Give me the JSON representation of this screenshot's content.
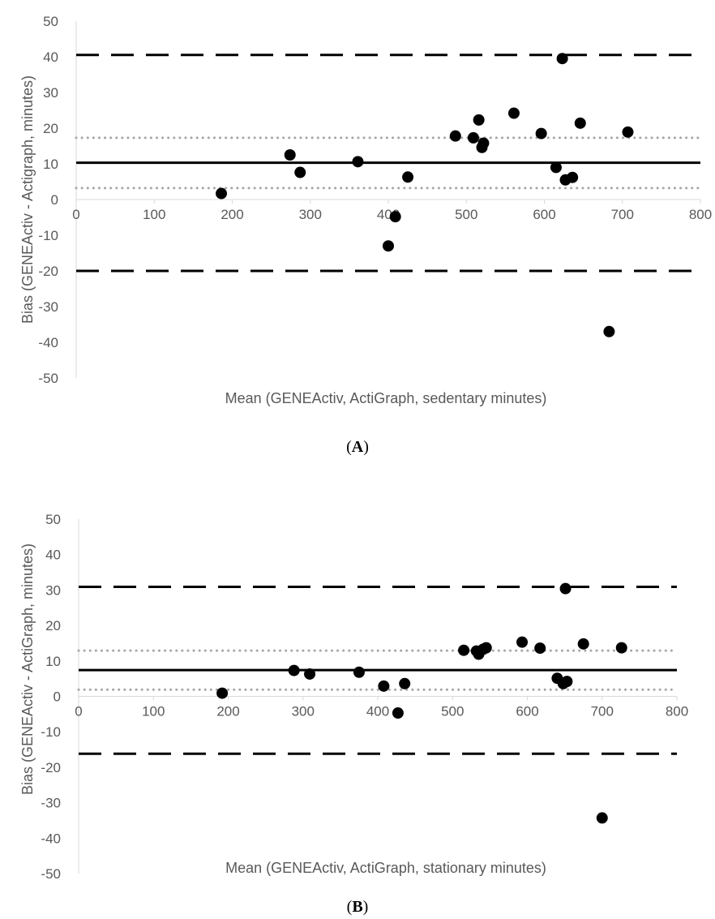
{
  "chart_data": [
    {
      "type": "scatter",
      "panel_label": "A",
      "xlabel": "Mean (GENEActiv, ActiGraph, sedentary minutes)",
      "ylabel": "Bias (GENEActiv - Actigraph, minutes)",
      "xlim": [
        0,
        800
      ],
      "ylim": [
        -50,
        50
      ],
      "x_ticks": [
        0,
        100,
        200,
        300,
        400,
        500,
        600,
        700,
        800
      ],
      "y_ticks": [
        50,
        40,
        30,
        20,
        10,
        0,
        -10,
        -20,
        -30,
        -40,
        -50
      ],
      "grid": false,
      "reference_lines": {
        "mean_bias": 10.3,
        "ci_upper": 17.3,
        "ci_lower": 3.2,
        "loa_upper": 40.5,
        "loa_lower": -20
      },
      "points": [
        {
          "x": 186,
          "y": 1.7
        },
        {
          "x": 274,
          "y": 12.5
        },
        {
          "x": 287,
          "y": 7.6
        },
        {
          "x": 361,
          "y": 10.6
        },
        {
          "x": 400,
          "y": -13
        },
        {
          "x": 409,
          "y": -4.8
        },
        {
          "x": 425,
          "y": 6.3
        },
        {
          "x": 486,
          "y": 17.8
        },
        {
          "x": 509,
          "y": 17.3
        },
        {
          "x": 516,
          "y": 22.3
        },
        {
          "x": 520,
          "y": 14.6
        },
        {
          "x": 522,
          "y": 15.8
        },
        {
          "x": 561,
          "y": 24.2
        },
        {
          "x": 596,
          "y": 18.5
        },
        {
          "x": 615,
          "y": 9.0
        },
        {
          "x": 623,
          "y": 39.5
        },
        {
          "x": 627,
          "y": 5.5
        },
        {
          "x": 636,
          "y": 6.2
        },
        {
          "x": 646,
          "y": 21.4
        },
        {
          "x": 683,
          "y": -37
        },
        {
          "x": 707,
          "y": 18.9
        }
      ]
    },
    {
      "type": "scatter",
      "panel_label": "B",
      "xlabel": "Mean (GENEActiv, ActiGraph, stationary minutes)",
      "ylabel": "Bias (GENEActiv - ActiGraph, minutes)",
      "xlim": [
        0,
        800
      ],
      "ylim": [
        -50,
        50
      ],
      "x_ticks": [
        0,
        100,
        200,
        300,
        400,
        500,
        600,
        700,
        800
      ],
      "y_ticks": [
        50,
        40,
        30,
        20,
        10,
        0,
        -10,
        -20,
        -30,
        -40,
        -50
      ],
      "grid": false,
      "reference_lines": {
        "mean_bias": 7.4,
        "ci_upper": 12.9,
        "ci_lower": 1.9,
        "loa_upper": 30.9,
        "loa_lower": -16.2
      },
      "points": [
        {
          "x": 192,
          "y": 0.9
        },
        {
          "x": 288,
          "y": 7.3
        },
        {
          "x": 309,
          "y": 6.3
        },
        {
          "x": 375,
          "y": 6.8
        },
        {
          "x": 408,
          "y": 2.9
        },
        {
          "x": 427,
          "y": -4.7
        },
        {
          "x": 436,
          "y": 3.6
        },
        {
          "x": 515,
          "y": 13.0
        },
        {
          "x": 532,
          "y": 12.8
        },
        {
          "x": 535,
          "y": 11.9
        },
        {
          "x": 541,
          "y": 13.3
        },
        {
          "x": 545,
          "y": 13.7
        },
        {
          "x": 593,
          "y": 15.3
        },
        {
          "x": 617,
          "y": 13.6
        },
        {
          "x": 640,
          "y": 5.1
        },
        {
          "x": 648,
          "y": 3.6
        },
        {
          "x": 651,
          "y": 30.4
        },
        {
          "x": 653,
          "y": 4.2
        },
        {
          "x": 675,
          "y": 14.8
        },
        {
          "x": 700,
          "y": -34.3
        },
        {
          "x": 726,
          "y": 13.7
        }
      ]
    }
  ]
}
